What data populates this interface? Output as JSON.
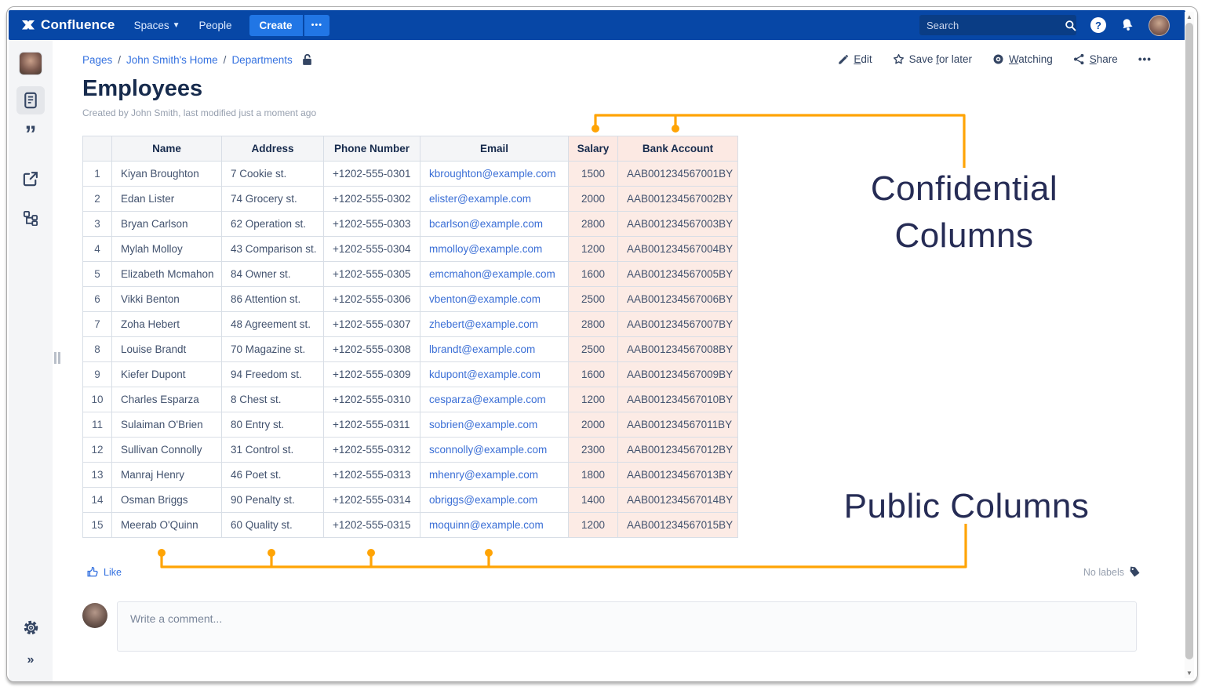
{
  "navbar": {
    "product": "Confluence",
    "spaces_label": "Spaces",
    "people_label": "People",
    "create_label": "Create",
    "create_more_label": "•••",
    "search_placeholder": "Search"
  },
  "breadcrumb": {
    "items": [
      "Pages",
      "John Smith's Home",
      "Departments"
    ],
    "separator": "/"
  },
  "page_actions": {
    "edit": {
      "label": "Edit",
      "key": "E"
    },
    "save": {
      "label": "Save for later",
      "key": "f"
    },
    "watch": {
      "label": "Watching",
      "key": "W"
    },
    "share": {
      "label": "Share",
      "key": "S"
    },
    "more_label": "•••"
  },
  "page": {
    "title": "Employees",
    "byline": "Created by John Smith, last modified just a moment ago"
  },
  "table": {
    "headers": [
      "",
      "Name",
      "Address",
      "Phone Number",
      "Email",
      "Salary",
      "Bank Account"
    ],
    "confidential_columns": [
      "Salary",
      "Bank Account"
    ],
    "rows": [
      [
        "1",
        "Kiyan Broughton",
        "7 Cookie st.",
        "+1202-555-0301",
        "kbroughton@example.com",
        "1500",
        "AAB001234567001BY"
      ],
      [
        "2",
        "Edan Lister",
        "74 Grocery st.",
        "+1202-555-0302",
        "elister@example.com",
        "2000",
        "AAB001234567002BY"
      ],
      [
        "3",
        "Bryan Carlson",
        "62 Operation st.",
        "+1202-555-0303",
        "bcarlson@example.com",
        "2800",
        "AAB001234567003BY"
      ],
      [
        "4",
        "Mylah Molloy",
        "43 Comparison st.",
        "+1202-555-0304",
        "mmolloy@example.com",
        "1200",
        "AAB001234567004BY"
      ],
      [
        "5",
        "Elizabeth Mcmahon",
        "84 Owner st.",
        "+1202-555-0305",
        "emcmahon@example.com",
        "1600",
        "AAB001234567005BY"
      ],
      [
        "6",
        "Vikki Benton",
        "86 Attention st.",
        "+1202-555-0306",
        "vbenton@example.com",
        "2500",
        "AAB001234567006BY"
      ],
      [
        "7",
        "Zoha Hebert",
        "48 Agreement st.",
        "+1202-555-0307",
        "zhebert@example.com",
        "2800",
        "AAB001234567007BY"
      ],
      [
        "8",
        "Louise Brandt",
        "70 Magazine st.",
        "+1202-555-0308",
        "lbrandt@example.com",
        "2500",
        "AAB001234567008BY"
      ],
      [
        "9",
        "Kiefer Dupont",
        "94 Freedom st.",
        "+1202-555-0309",
        "kdupont@example.com",
        "1600",
        "AAB001234567009BY"
      ],
      [
        "10",
        "Charles Esparza",
        "8 Chest st.",
        "+1202-555-0310",
        "cesparza@example.com",
        "1200",
        "AAB001234567010BY"
      ],
      [
        "11",
        "Sulaiman O'Brien",
        "80 Entry st.",
        "+1202-555-0311",
        "sobrien@example.com",
        "2000",
        "AAB001234567011BY"
      ],
      [
        "12",
        "Sullivan Connolly",
        "31 Control st.",
        "+1202-555-0312",
        "sconnolly@example.com",
        "2300",
        "AAB001234567012BY"
      ],
      [
        "13",
        "Manraj Henry",
        "46 Poet st.",
        "+1202-555-0313",
        "mhenry@example.com",
        "1800",
        "AAB001234567013BY"
      ],
      [
        "14",
        "Osman Briggs",
        "90 Penalty st.",
        "+1202-555-0314",
        "obriggs@example.com",
        "1400",
        "AAB001234567014BY"
      ],
      [
        "15",
        "Meerab O'Quinn",
        "60 Quality st.",
        "+1202-555-0315",
        "moquinn@example.com",
        "1200",
        "AAB001234567015BY"
      ]
    ]
  },
  "annotations": {
    "confidential_label": "Confidential Columns",
    "public_label": "Public Columns",
    "accent_color": "#FFA405",
    "label_color": "#262C55"
  },
  "footer": {
    "like_label": "Like",
    "labels_text": "No labels"
  },
  "comment": {
    "placeholder": "Write a comment..."
  }
}
